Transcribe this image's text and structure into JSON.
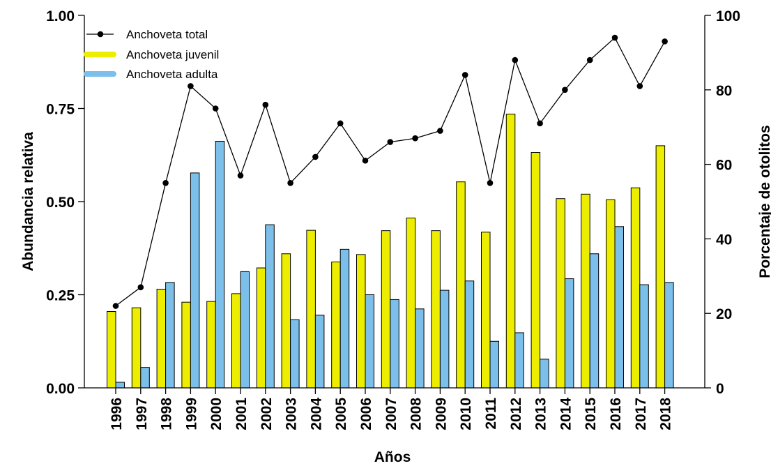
{
  "chart_data": {
    "type": "bar",
    "title": "",
    "xlabel": "Años",
    "ylabel_left": "Abundancia relativa",
    "ylabel_right": "Porcentaje de otolitos",
    "categories": [
      "1996",
      "1997",
      "1998",
      "1999",
      "2000",
      "2001",
      "2002",
      "2003",
      "2004",
      "2005",
      "2006",
      "2007",
      "2008",
      "2009",
      "2010",
      "2011",
      "2012",
      "2013",
      "2014",
      "2015",
      "2016",
      "2017",
      "2018"
    ],
    "ylim_left": [
      0,
      1
    ],
    "yticks_left": [
      "0.00",
      "0.25",
      "0.50",
      "0.75",
      "1.00"
    ],
    "ylim_right": [
      0,
      100
    ],
    "yticks_right": [
      "0",
      "20",
      "40",
      "60",
      "80",
      "100"
    ],
    "grid": false,
    "legend_position": "top-left",
    "series": [
      {
        "name": "Anchoveta juvenil",
        "kind": "bar",
        "axis": "left",
        "color": "#eded00",
        "values": [
          0.205,
          0.215,
          0.265,
          0.23,
          0.232,
          0.253,
          0.322,
          0.36,
          0.423,
          0.338,
          0.358,
          0.422,
          0.456,
          0.422,
          0.553,
          0.418,
          0.735,
          0.632,
          0.508,
          0.52,
          0.505,
          0.537,
          0.65
        ]
      },
      {
        "name": "Anchoveta adulta",
        "kind": "bar",
        "axis": "left",
        "color": "#7bbfea",
        "values": [
          0.015,
          0.055,
          0.283,
          0.577,
          0.662,
          0.312,
          0.438,
          0.183,
          0.195,
          0.372,
          0.25,
          0.237,
          0.212,
          0.262,
          0.287,
          0.125,
          0.148,
          0.077,
          0.293,
          0.36,
          0.433,
          0.277,
          0.283
        ]
      },
      {
        "name": "Anchoveta total",
        "kind": "line",
        "axis": "right",
        "color": "#000000",
        "values": [
          22,
          27,
          55,
          81,
          75,
          57,
          76,
          55,
          62,
          71,
          61,
          66,
          67,
          69,
          84,
          55,
          88,
          71,
          80,
          88,
          94,
          81,
          93
        ]
      }
    ]
  }
}
